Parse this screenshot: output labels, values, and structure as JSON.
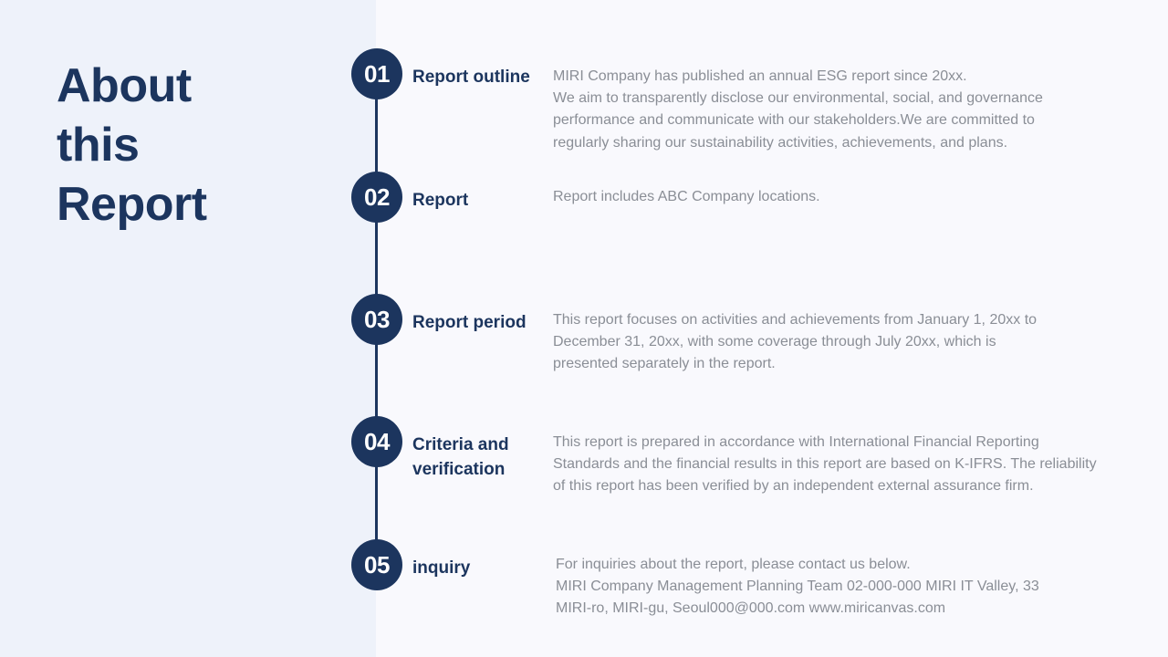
{
  "title_lines": [
    "About",
    "this",
    "Report"
  ],
  "sections": [
    {
      "number": "01",
      "title_lines": [
        "Report outline"
      ],
      "body_lines": [
        "MIRI Company has published an annual ESG report since 20xx.",
        "We aim to transparently disclose our environmental, social, and governance",
        "performance and communicate with our stakeholders.We are committed to",
        "regularly sharing our sustainability activities, achievements, and plans."
      ]
    },
    {
      "number": "02",
      "title_lines": [
        "Report"
      ],
      "body_lines": [
        "Report includes ABC Company locations."
      ]
    },
    {
      "number": "03",
      "title_lines": [
        "Report period"
      ],
      "body_lines": [
        "This report focuses on activities and achievements from January 1, 20xx to",
        "December 31, 20xx, with some coverage through July 20xx, which is",
        "presented separately in the report."
      ]
    },
    {
      "number": "04",
      "title_lines": [
        "Criteria and",
        "verification"
      ],
      "body_lines": [
        "This report is prepared in accordance with International Financial Reporting",
        "Standards and the financial results in this report are based on K-IFRS. The reliability",
        "of this report has been verified by an independent external assurance firm."
      ]
    },
    {
      "number": "05",
      "title_lines": [
        "inquiry"
      ],
      "body_lines": [
        "For inquiries about the report, please contact us below.",
        "MIRI Company Management Planning Team 02-000-000 MIRI IT Valley, 33",
        "MIRI-ro, MIRI-gu, Seoul000@000.com www.miricanvas.com"
      ]
    }
  ],
  "colors": {
    "accent": "#1c355e",
    "body_text": "#8a8e96",
    "left_panel": "#eef2fa",
    "right_panel": "#f9f9fd"
  }
}
